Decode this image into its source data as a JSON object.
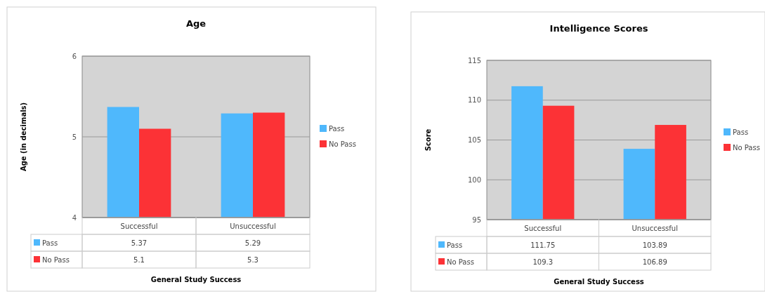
{
  "chart_data": [
    {
      "type": "bar",
      "title": "Age",
      "xlabel": "General Study Success",
      "ylabel": "Age (in decimals)",
      "categories": [
        "Successful",
        "Unsuccessful"
      ],
      "series": [
        {
          "name": "Pass",
          "color": "#4fb8fc",
          "values": [
            5.37,
            5.29
          ]
        },
        {
          "name": "No Pass",
          "color": "#fc3236",
          "values": [
            5.1,
            5.3
          ]
        }
      ],
      "ylim": [
        4,
        6
      ],
      "yticks": [
        4,
        5,
        6
      ],
      "grid": "y",
      "legend": "right",
      "data_labels": true
    },
    {
      "type": "bar",
      "title": "Intelligence Scores",
      "xlabel": "General Study Success",
      "ylabel": "Score",
      "categories": [
        "Successful",
        "Unsuccessful"
      ],
      "series": [
        {
          "name": "Pass",
          "color": "#4fb8fc",
          "values": [
            111.75,
            103.89
          ]
        },
        {
          "name": "No Pass",
          "color": "#fc3236",
          "values": [
            109.3,
            106.89
          ]
        }
      ],
      "ylim": [
        95,
        115
      ],
      "yticks": [
        95,
        100,
        105,
        110,
        115
      ],
      "grid": "y",
      "legend": "right",
      "data_labels": true
    }
  ]
}
